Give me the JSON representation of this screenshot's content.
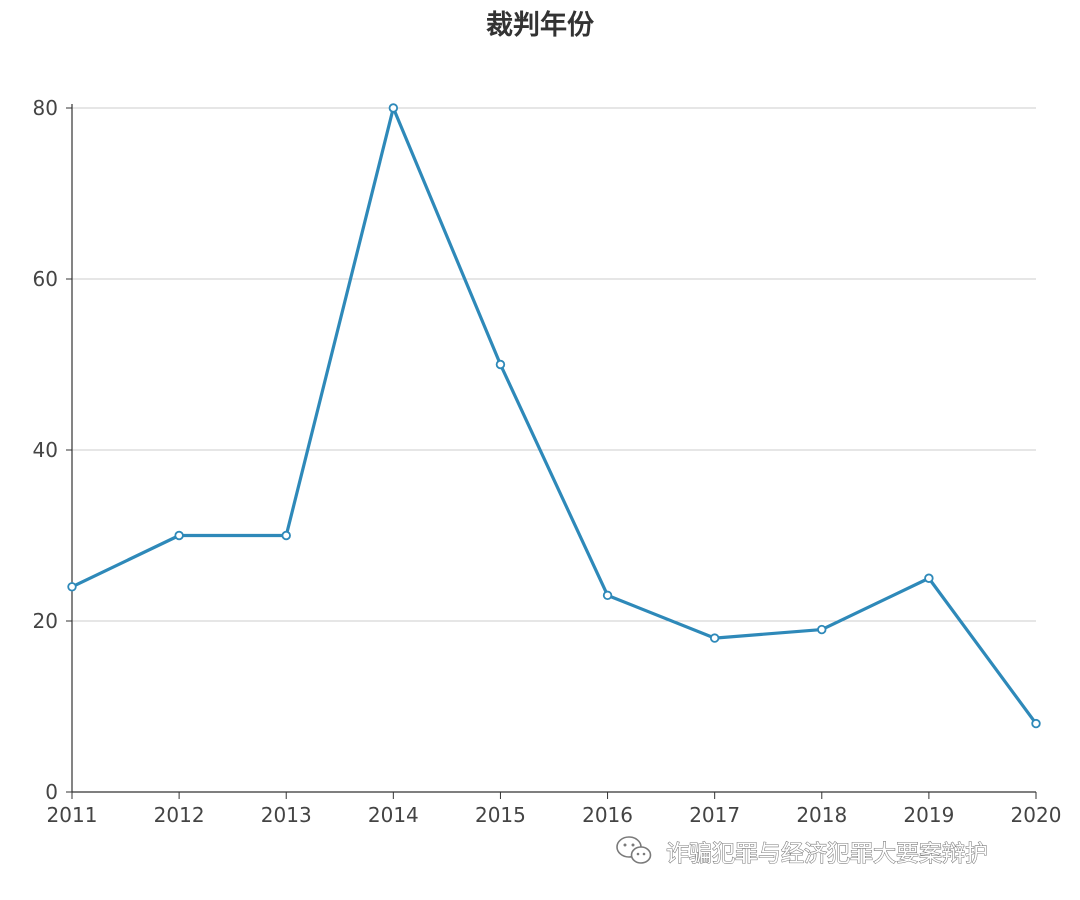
{
  "chart_data": {
    "type": "line",
    "title": "裁判年份",
    "xlabel": "",
    "ylabel": "",
    "x": [
      "2011",
      "2012",
      "2013",
      "2014",
      "2015",
      "2016",
      "2017",
      "2018",
      "2019",
      "2020"
    ],
    "series": [
      {
        "values": [
          24,
          30,
          30,
          80,
          50,
          23,
          18,
          19,
          25,
          8
        ]
      }
    ],
    "ylim": [
      0,
      80
    ],
    "yticks": [
      "0",
      "20",
      "40",
      "60",
      "80"
    ],
    "grid": true,
    "legend": "none",
    "colors": {
      "line": "#2e89b9",
      "grid": "#cccccc",
      "axis": "#333333"
    }
  },
  "watermark": {
    "text": "诈骗犯罪与经济犯罪大要案辩护",
    "icon": "wechat-icon"
  }
}
